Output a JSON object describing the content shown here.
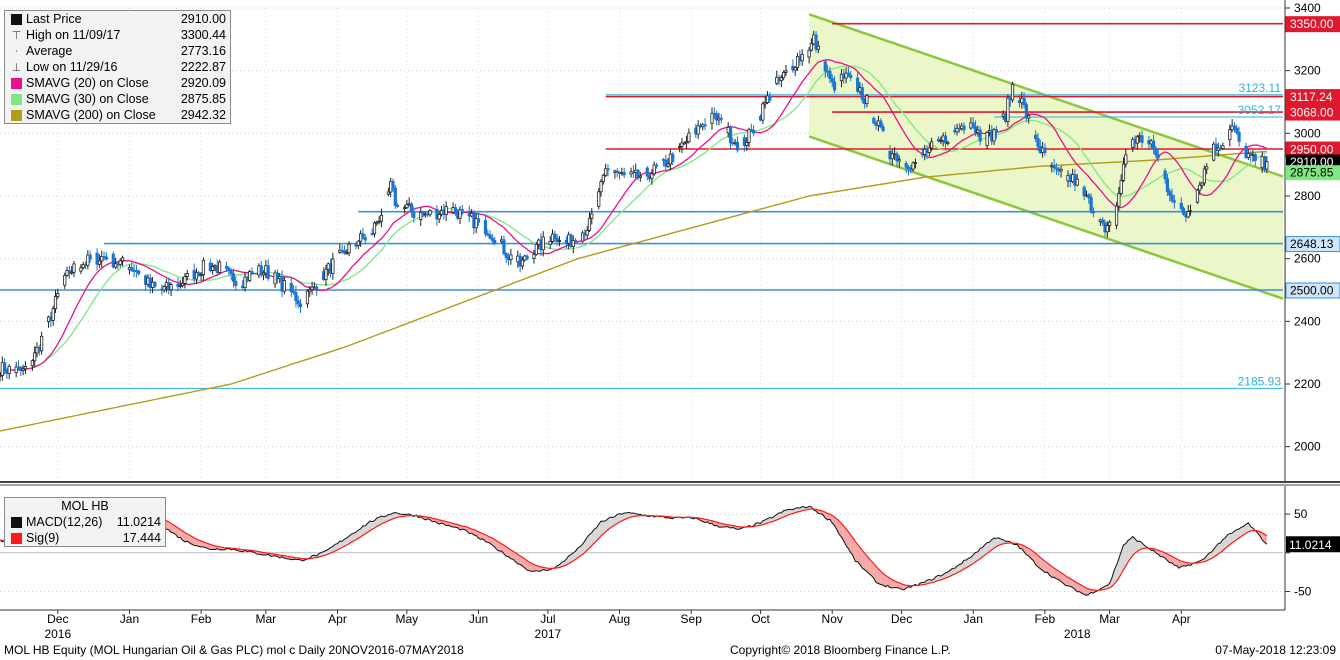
{
  "legend": {
    "items": [
      {
        "label": "Last Price",
        "value": "2910.00",
        "color": "#111111",
        "symbol": "box"
      },
      {
        "label": "High on 11/09/17",
        "value": "3300.44",
        "color": "#777777",
        "symbol": "high"
      },
      {
        "label": "Average",
        "value": "2773.16",
        "color": "#777777",
        "symbol": "avg"
      },
      {
        "label": "Low on 11/29/16",
        "value": "2222.87",
        "color": "#777777",
        "symbol": "low"
      },
      {
        "label": "SMAVG (20) on Close",
        "value": "2920.09",
        "color": "#e8108c",
        "symbol": "box"
      },
      {
        "label": "SMAVG (30) on Close",
        "value": "2875.85",
        "color": "#7fe87f",
        "symbol": "box"
      },
      {
        "label": "SMAVG (200) on Close",
        "value": "2942.32",
        "color": "#b39b1b",
        "symbol": "box"
      }
    ]
  },
  "macd_legend": {
    "title": "MOL HB",
    "items": [
      {
        "label": "MACD(12,26)",
        "value": "11.0214",
        "color": "#111111"
      },
      {
        "label": "Sig(9)",
        "value": "17.444",
        "color": "#ff1a1a"
      }
    ]
  },
  "chart_data": {
    "type": "line",
    "title": "",
    "price_axis": {
      "min": 1900,
      "max": 3400,
      "ticks": [
        2000,
        2200,
        2400,
        2600,
        2800,
        3000,
        3200,
        3400
      ]
    },
    "macd_axis": {
      "min": -70,
      "max": 85,
      "ticks": [
        -50,
        0,
        50
      ]
    },
    "months": [
      {
        "label": "Dec",
        "day": 25
      },
      {
        "label": "Jan",
        "day": 56
      },
      {
        "label": "Feb",
        "day": 87
      },
      {
        "label": "Mar",
        "day": 115
      },
      {
        "label": "Apr",
        "day": 146
      },
      {
        "label": "May",
        "day": 176
      },
      {
        "label": "Jun",
        "day": 207
      },
      {
        "label": "Jul",
        "day": 237
      },
      {
        "label": "Aug",
        "day": 268
      },
      {
        "label": "Sep",
        "day": 299
      },
      {
        "label": "Oct",
        "day": 329
      },
      {
        "label": "Nov",
        "day": 360
      },
      {
        "label": "Dec",
        "day": 390
      },
      {
        "label": "Jan",
        "day": 421
      },
      {
        "label": "Feb",
        "day": 452
      },
      {
        "label": "Mar",
        "day": 480
      },
      {
        "label": "Apr",
        "day": 511
      }
    ],
    "years": [
      {
        "label": "2016",
        "day": 25
      },
      {
        "label": "2017",
        "day": 237
      },
      {
        "label": "2018",
        "day": 466
      }
    ],
    "price_keys": [
      [
        0,
        2250
      ],
      [
        5,
        2245
      ],
      [
        10,
        2240
      ],
      [
        15,
        2290
      ],
      [
        20,
        2380
      ],
      [
        25,
        2480
      ],
      [
        30,
        2560
      ],
      [
        35,
        2580
      ],
      [
        40,
        2600
      ],
      [
        45,
        2605
      ],
      [
        50,
        2590
      ],
      [
        55,
        2580
      ],
      [
        60,
        2560
      ],
      [
        65,
        2510
      ],
      [
        70,
        2500
      ],
      [
        75,
        2510
      ],
      [
        80,
        2530
      ],
      [
        85,
        2560
      ],
      [
        90,
        2580
      ],
      [
        95,
        2570
      ],
      [
        100,
        2540
      ],
      [
        105,
        2530
      ],
      [
        110,
        2560
      ],
      [
        115,
        2560
      ],
      [
        120,
        2530
      ],
      [
        125,
        2500
      ],
      [
        130,
        2460
      ],
      [
        135,
        2500
      ],
      [
        140,
        2550
      ],
      [
        145,
        2590
      ],
      [
        150,
        2630
      ],
      [
        155,
        2660
      ],
      [
        160,
        2670
      ],
      [
        163,
        2720
      ],
      [
        166,
        2760
      ],
      [
        169,
        2830
      ],
      [
        172,
        2760
      ],
      [
        176,
        2760
      ],
      [
        180,
        2740
      ],
      [
        185,
        2740
      ],
      [
        190,
        2750
      ],
      [
        195,
        2760
      ],
      [
        200,
        2740
      ],
      [
        205,
        2720
      ],
      [
        210,
        2700
      ],
      [
        215,
        2660
      ],
      [
        220,
        2610
      ],
      [
        225,
        2580
      ],
      [
        230,
        2620
      ],
      [
        235,
        2650
      ],
      [
        240,
        2680
      ],
      [
        245,
        2650
      ],
      [
        250,
        2670
      ],
      [
        255,
        2710
      ],
      [
        258,
        2770
      ],
      [
        262,
        2880
      ],
      [
        266,
        2880
      ],
      [
        270,
        2860
      ],
      [
        275,
        2860
      ],
      [
        280,
        2870
      ],
      [
        285,
        2890
      ],
      [
        290,
        2920
      ],
      [
        295,
        2960
      ],
      [
        300,
        3000
      ],
      [
        305,
        3040
      ],
      [
        310,
        3050
      ],
      [
        315,
        3000
      ],
      [
        320,
        2960
      ],
      [
        325,
        3000
      ],
      [
        330,
        3080
      ],
      [
        335,
        3150
      ],
      [
        340,
        3190
      ],
      [
        345,
        3240
      ],
      [
        350,
        3260
      ],
      [
        352,
        3300
      ],
      [
        356,
        3220
      ],
      [
        360,
        3150
      ],
      [
        365,
        3180
      ],
      [
        370,
        3160
      ],
      [
        375,
        3100
      ],
      [
        380,
        3020
      ],
      [
        385,
        2940
      ],
      [
        390,
        2920
      ],
      [
        395,
        2900
      ],
      [
        400,
        2940
      ],
      [
        405,
        2960
      ],
      [
        410,
        2990
      ],
      [
        415,
        3020
      ],
      [
        420,
        3040
      ],
      [
        425,
        2980
      ],
      [
        430,
        3000
      ],
      [
        435,
        3060
      ],
      [
        438,
        3150
      ],
      [
        442,
        3100
      ],
      [
        446,
        3020
      ],
      [
        450,
        2950
      ],
      [
        455,
        2880
      ],
      [
        460,
        2860
      ],
      [
        465,
        2850
      ],
      [
        470,
        2790
      ],
      [
        475,
        2740
      ],
      [
        478,
        2680
      ],
      [
        482,
        2720
      ],
      [
        486,
        2900
      ],
      [
        490,
        2980
      ],
      [
        495,
        2980
      ],
      [
        500,
        2940
      ],
      [
        505,
        2830
      ],
      [
        510,
        2760
      ],
      [
        513,
        2740
      ],
      [
        517,
        2800
      ],
      [
        521,
        2880
      ],
      [
        525,
        2950
      ],
      [
        530,
        2980
      ],
      [
        533,
        3020
      ],
      [
        537,
        2960
      ],
      [
        541,
        2920
      ],
      [
        545,
        2900
      ],
      [
        548,
        2910
      ]
    ],
    "sma200_keys": [
      [
        0,
        2050
      ],
      [
        100,
        2200
      ],
      [
        150,
        2320
      ],
      [
        200,
        2460
      ],
      [
        250,
        2600
      ],
      [
        300,
        2700
      ],
      [
        350,
        2800
      ],
      [
        400,
        2860
      ],
      [
        450,
        2895
      ],
      [
        500,
        2915
      ],
      [
        548,
        2942.32
      ]
    ],
    "macd_keys": [
      [
        0,
        15
      ],
      [
        10,
        20
      ],
      [
        20,
        40
      ],
      [
        30,
        60
      ],
      [
        40,
        70
      ],
      [
        50,
        70
      ],
      [
        60,
        55
      ],
      [
        70,
        35
      ],
      [
        80,
        15
      ],
      [
        90,
        5
      ],
      [
        100,
        5
      ],
      [
        110,
        0
      ],
      [
        120,
        -5
      ],
      [
        130,
        -10
      ],
      [
        140,
        0
      ],
      [
        150,
        20
      ],
      [
        160,
        40
      ],
      [
        170,
        52
      ],
      [
        180,
        48
      ],
      [
        190,
        38
      ],
      [
        200,
        30
      ],
      [
        210,
        15
      ],
      [
        220,
        -5
      ],
      [
        230,
        -25
      ],
      [
        240,
        -20
      ],
      [
        250,
        5
      ],
      [
        260,
        40
      ],
      [
        270,
        52
      ],
      [
        280,
        48
      ],
      [
        290,
        45
      ],
      [
        300,
        45
      ],
      [
        310,
        35
      ],
      [
        320,
        30
      ],
      [
        330,
        40
      ],
      [
        340,
        55
      ],
      [
        350,
        60
      ],
      [
        360,
        40
      ],
      [
        370,
        -10
      ],
      [
        380,
        -40
      ],
      [
        390,
        -48
      ],
      [
        400,
        -38
      ],
      [
        410,
        -25
      ],
      [
        420,
        -5
      ],
      [
        430,
        20
      ],
      [
        440,
        10
      ],
      [
        450,
        -20
      ],
      [
        460,
        -40
      ],
      [
        470,
        -55
      ],
      [
        480,
        -40
      ],
      [
        486,
        10
      ],
      [
        490,
        20
      ],
      [
        500,
        0
      ],
      [
        510,
        -20
      ],
      [
        520,
        -10
      ],
      [
        530,
        20
      ],
      [
        540,
        38
      ],
      [
        548,
        11.0214
      ]
    ],
    "channel_upper": [
      [
        350,
        3380
      ],
      [
        548,
        2880
      ]
    ],
    "channel_lower": [
      [
        350,
        2990
      ],
      [
        548,
        2490
      ]
    ],
    "hlines": [
      {
        "value": 3350,
        "label": "3350.00",
        "from": 360,
        "color": "#e0182d",
        "tag": "box"
      },
      {
        "value": 3123.11,
        "label": "3123.11",
        "from": 262,
        "color": "#2ab5dc",
        "tag": "text"
      },
      {
        "value": 3117.24,
        "label": "3117.24",
        "from": 262,
        "color": "#e0182d",
        "tag": "box"
      },
      {
        "value": 3068,
        "label": "3068.00",
        "from": 360,
        "color": "#e0182d",
        "tag": "box"
      },
      {
        "value": 3052.17,
        "label": "3052.17",
        "from": 430,
        "color": "#2ab5dc",
        "tag": "text"
      },
      {
        "value": 2950,
        "label": "2950.00",
        "from": 262,
        "color": "#e0182d",
        "tag": "box"
      },
      {
        "value": 2750,
        "label": "",
        "from": 155,
        "color": "#3a92d8",
        "tag": "none"
      },
      {
        "value": 2648.13,
        "label": "2648.13",
        "from": 45,
        "color": "#3a92d8",
        "tag": "box"
      },
      {
        "value": 2500,
        "label": "2500.00",
        "from": 0,
        "color": "#3a92d8",
        "tag": "box"
      },
      {
        "value": 2185.93,
        "label": "2185.93",
        "from": 0,
        "color": "#2ab5dc",
        "tag": "text"
      }
    ],
    "price_tags": [
      {
        "value": 2910,
        "label": "2910.00",
        "bg": "#000000",
        "fg": "#ffffff"
      },
      {
        "value": 2875.85,
        "label": "2875.85",
        "bg": "#7fe87f",
        "fg": "#000000"
      }
    ],
    "macd_tag": {
      "label": "11.0214",
      "bg": "#000000",
      "fg": "#ffffff"
    }
  },
  "footer": {
    "left": "MOL HB Equity (MOL Hungarian Oil & Gas PLC) mol c  Daily 20NOV2016-07MAY2018",
    "center": "Copyright© 2018 Bloomberg Finance L.P.",
    "right": "07-May-2018 12:23:09"
  }
}
